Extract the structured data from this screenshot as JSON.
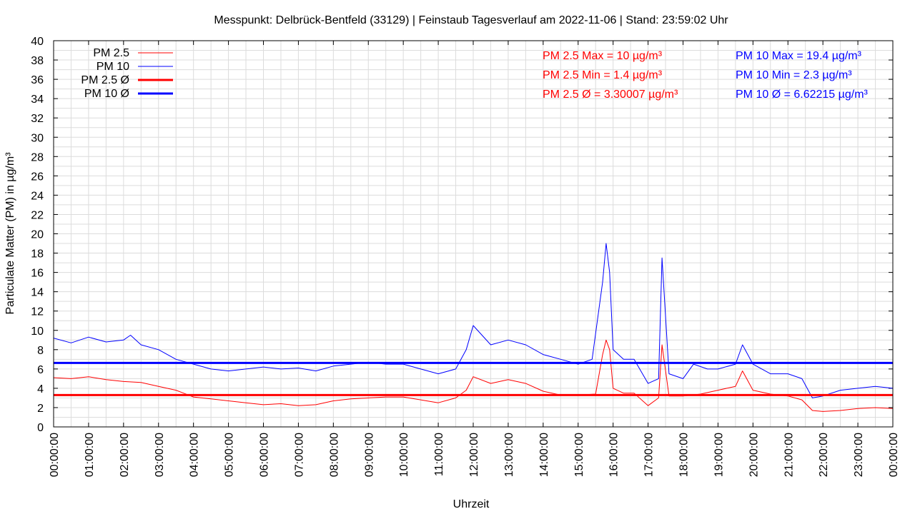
{
  "chart_data": {
    "type": "line",
    "title": "Messpunkt: Delbrück-Bentfeld (33129) | Feinstaub Tagesverlauf am 2022-11-06 | Stand: 23:59:02 Uhr",
    "xlabel": "Uhrzeit",
    "ylabel": "Particulate Matter (PM) in µg/m³",
    "ylim": [
      0,
      40
    ],
    "y_ticks": [
      "0",
      "2",
      "4",
      "6",
      "8",
      "10",
      "12",
      "14",
      "16",
      "18",
      "20",
      "22",
      "24",
      "26",
      "28",
      "30",
      "32",
      "34",
      "36",
      "38",
      "40"
    ],
    "xlim_hours": [
      0,
      24
    ],
    "x_ticks": [
      "00:00:00",
      "01:00:00",
      "02:00:00",
      "03:00:00",
      "04:00:00",
      "05:00:00",
      "06:00:00",
      "07:00:00",
      "08:00:00",
      "09:00:00",
      "10:00:00",
      "11:00:00",
      "12:00:00",
      "13:00:00",
      "14:00:00",
      "15:00:00",
      "16:00:00",
      "17:00:00",
      "18:00:00",
      "19:00:00",
      "20:00:00",
      "21:00:00",
      "22:00:00",
      "23:00:00",
      "00:00:00"
    ],
    "grid": true,
    "legend_position": "top-left",
    "series": [
      {
        "name": "PM 2.5",
        "color": "#ff0000",
        "style": "thin",
        "x_hours": [
          0,
          0.5,
          1,
          1.5,
          2,
          2.5,
          3,
          3.5,
          4,
          4.5,
          5,
          5.5,
          6,
          6.5,
          7,
          7.5,
          8,
          8.5,
          9,
          9.5,
          10,
          10.5,
          11,
          11.5,
          11.8,
          12,
          12.5,
          13,
          13.5,
          14,
          14.5,
          15,
          15.5,
          15.7,
          15.8,
          15.9,
          16,
          16.3,
          16.6,
          17,
          17.3,
          17.4,
          17.6,
          18,
          18.5,
          19,
          19.5,
          19.7,
          20,
          20.5,
          21,
          21.4,
          21.7,
          22,
          22.5,
          23,
          23.5,
          24
        ],
        "values": [
          5.1,
          5.0,
          5.2,
          4.9,
          4.7,
          4.6,
          4.2,
          3.8,
          3.1,
          2.9,
          2.7,
          2.5,
          2.3,
          2.4,
          2.2,
          2.3,
          2.7,
          2.9,
          3.0,
          3.1,
          3.1,
          2.8,
          2.5,
          3.0,
          3.8,
          5.2,
          4.5,
          4.9,
          4.5,
          3.7,
          3.3,
          3.3,
          3.4,
          7.5,
          9.0,
          8.0,
          4.0,
          3.5,
          3.5,
          2.2,
          3.0,
          8.5,
          3.2,
          3.2,
          3.4,
          3.8,
          4.2,
          5.8,
          3.8,
          3.4,
          3.2,
          2.8,
          1.7,
          1.6,
          1.7,
          1.9,
          2.0,
          1.9
        ]
      },
      {
        "name": "PM 10",
        "color": "#0000ff",
        "style": "thin",
        "x_hours": [
          0,
          0.5,
          1,
          1.5,
          2,
          2.2,
          2.5,
          3,
          3.5,
          4,
          4.5,
          5,
          5.5,
          6,
          6.5,
          7,
          7.5,
          8,
          8.5,
          9,
          9.5,
          10,
          10.5,
          11,
          11.5,
          11.8,
          12,
          12.5,
          13,
          13.5,
          14,
          14.5,
          15,
          15.4,
          15.7,
          15.8,
          15.9,
          16,
          16.3,
          16.6,
          17,
          17.3,
          17.4,
          17.6,
          18,
          18.3,
          18.7,
          19,
          19.5,
          19.7,
          20,
          20.5,
          21,
          21.4,
          21.7,
          22,
          22.5,
          23,
          23.5,
          24
        ],
        "values": [
          9.2,
          8.7,
          9.3,
          8.8,
          9.0,
          9.5,
          8.5,
          8.0,
          7.0,
          6.5,
          6.0,
          5.8,
          6.0,
          6.2,
          6.0,
          6.1,
          5.8,
          6.3,
          6.5,
          6.7,
          6.5,
          6.5,
          6.0,
          5.5,
          6.0,
          8.0,
          10.5,
          8.5,
          9.0,
          8.5,
          7.5,
          7.0,
          6.5,
          7.0,
          15.0,
          19.0,
          16.0,
          8.0,
          7.0,
          7.0,
          4.5,
          5.0,
          17.5,
          5.5,
          5.0,
          6.5,
          6.0,
          6.0,
          6.5,
          8.5,
          6.5,
          5.5,
          5.5,
          5.0,
          3.0,
          3.2,
          3.8,
          4.0,
          4.2,
          4.0
        ]
      },
      {
        "name": "PM 2.5 Ø",
        "color": "#ff0000",
        "style": "thick",
        "constant": 3.30007
      },
      {
        "name": "PM 10 Ø",
        "color": "#0000ff",
        "style": "thick",
        "constant": 6.62215
      }
    ],
    "annotations": [
      {
        "text": "PM 2.5 Max = 10 µg/m³",
        "color": "#ff0000"
      },
      {
        "text": "PM 2.5 Min = 1.4 µg/m³",
        "color": "#ff0000"
      },
      {
        "text": "PM 2.5 Ø = 3.30007 µg/m³",
        "color": "#ff0000"
      },
      {
        "text": "PM 10 Max = 19.4 µg/m³",
        "color": "#0000ff"
      },
      {
        "text": "PM 10 Min = 2.3 µg/m³",
        "color": "#0000ff"
      },
      {
        "text": "PM 10 Ø = 6.62215 µg/m³",
        "color": "#0000ff"
      }
    ]
  }
}
